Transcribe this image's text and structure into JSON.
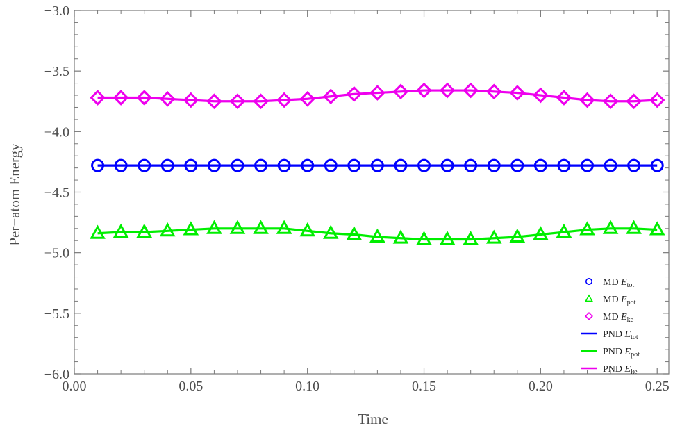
{
  "chart_data": {
    "type": "line",
    "title": "",
    "xlabel": "Time",
    "ylabel": "Per−atom Energy",
    "xlim": [
      0.0,
      0.255
    ],
    "ylim": [
      -6.0,
      -3.0
    ],
    "x_ticks": [
      0.0,
      0.05,
      0.1,
      0.15,
      0.2,
      0.25
    ],
    "x_tick_labels": [
      "0.00",
      "0.05",
      "0.10",
      "0.15",
      "0.20",
      "0.25"
    ],
    "y_ticks": [
      -6.0,
      -5.5,
      -5.0,
      -4.5,
      -4.0,
      -3.5,
      -3.0
    ],
    "y_tick_labels": [
      "−6.0",
      "−5.5",
      "−5.0",
      "−4.5",
      "−4.0",
      "−3.5",
      "−3.0"
    ],
    "grid": false,
    "legend_position": "bottom-right",
    "x": [
      0.01,
      0.02,
      0.03,
      0.04,
      0.05,
      0.06,
      0.07,
      0.08,
      0.09,
      0.1,
      0.11,
      0.12,
      0.13,
      0.14,
      0.15,
      0.16,
      0.17,
      0.18,
      0.19,
      0.2,
      0.21,
      0.22,
      0.23,
      0.24,
      0.25
    ],
    "series": [
      {
        "legend": {
          "prefix": "MD",
          "symbol": "E",
          "sub": "tot"
        },
        "kind": "marker",
        "marker": "circle",
        "color": "#0000ff",
        "values": [
          -4.28,
          -4.28,
          -4.28,
          -4.28,
          -4.28,
          -4.28,
          -4.28,
          -4.28,
          -4.28,
          -4.28,
          -4.28,
          -4.28,
          -4.28,
          -4.28,
          -4.28,
          -4.28,
          -4.28,
          -4.28,
          -4.28,
          -4.28,
          -4.28,
          -4.28,
          -4.28,
          -4.28,
          -4.28
        ]
      },
      {
        "legend": {
          "prefix": "MD",
          "symbol": "E",
          "sub": "pot"
        },
        "kind": "marker",
        "marker": "triangle",
        "color": "#00ee00",
        "values": [
          -4.84,
          -4.83,
          -4.83,
          -4.82,
          -4.81,
          -4.8,
          -4.8,
          -4.8,
          -4.8,
          -4.82,
          -4.84,
          -4.85,
          -4.87,
          -4.88,
          -4.89,
          -4.89,
          -4.89,
          -4.88,
          -4.87,
          -4.85,
          -4.83,
          -4.81,
          -4.8,
          -4.8,
          -4.81
        ]
      },
      {
        "legend": {
          "prefix": "MD",
          "symbol": "E",
          "sub": "ke"
        },
        "kind": "marker",
        "marker": "diamond",
        "color": "#ee00ee",
        "values": [
          -3.72,
          -3.72,
          -3.72,
          -3.73,
          -3.74,
          -3.75,
          -3.75,
          -3.75,
          -3.74,
          -3.73,
          -3.71,
          -3.69,
          -3.68,
          -3.67,
          -3.66,
          -3.66,
          -3.66,
          -3.67,
          -3.68,
          -3.7,
          -3.72,
          -3.74,
          -3.75,
          -3.75,
          -3.74
        ]
      },
      {
        "legend": {
          "prefix": "PND",
          "symbol": "E",
          "sub": "tot"
        },
        "kind": "line",
        "color": "#0000ff",
        "values": [
          -4.28,
          -4.28,
          -4.28,
          -4.28,
          -4.28,
          -4.28,
          -4.28,
          -4.28,
          -4.28,
          -4.28,
          -4.28,
          -4.28,
          -4.28,
          -4.28,
          -4.28,
          -4.28,
          -4.28,
          -4.28,
          -4.28,
          -4.28,
          -4.28,
          -4.28,
          -4.28,
          -4.28,
          -4.28
        ]
      },
      {
        "legend": {
          "prefix": "PND",
          "symbol": "E",
          "sub": "pot"
        },
        "kind": "line",
        "color": "#00ee00",
        "values": [
          -4.84,
          -4.83,
          -4.83,
          -4.82,
          -4.81,
          -4.8,
          -4.8,
          -4.8,
          -4.8,
          -4.82,
          -4.84,
          -4.85,
          -4.87,
          -4.88,
          -4.89,
          -4.89,
          -4.89,
          -4.88,
          -4.87,
          -4.85,
          -4.83,
          -4.81,
          -4.8,
          -4.8,
          -4.81
        ]
      },
      {
        "legend": {
          "prefix": "PND",
          "symbol": "E",
          "sub": "ke"
        },
        "kind": "line",
        "color": "#ee00ee",
        "values": [
          -3.72,
          -3.72,
          -3.72,
          -3.73,
          -3.74,
          -3.75,
          -3.75,
          -3.75,
          -3.74,
          -3.73,
          -3.71,
          -3.69,
          -3.68,
          -3.67,
          -3.66,
          -3.66,
          -3.66,
          -3.67,
          -3.68,
          -3.7,
          -3.72,
          -3.74,
          -3.75,
          -3.75,
          -3.74
        ]
      }
    ]
  }
}
